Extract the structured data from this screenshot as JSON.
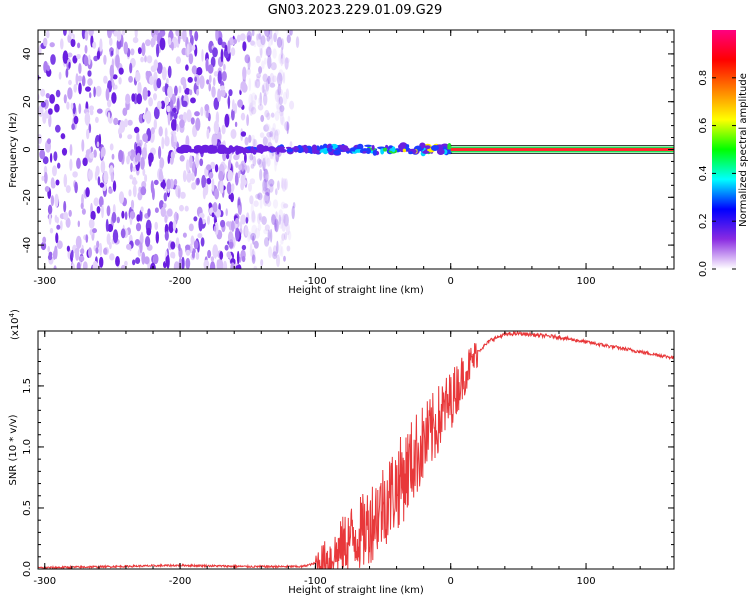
{
  "title": "GN03.2023.229.01.09.G29",
  "chart_data": [
    {
      "type": "heatmap",
      "name": "spectrogram",
      "xlabel": "Height of straight line (km)",
      "ylabel": "Frequency (Hz)",
      "xlim": [
        -305,
        165
      ],
      "ylim": [
        -50,
        50
      ],
      "x_ticks": [
        -300,
        -200,
        -100,
        0,
        100
      ],
      "y_ticks": [
        -40,
        -20,
        0,
        20,
        40
      ],
      "noise_region_x": [
        -305,
        -120
      ],
      "signal_line_x": [
        0,
        165
      ],
      "signal_line_y": 0,
      "colorbar": {
        "label": "Normalized spectral amplitude",
        "range": [
          0.0,
          1.0
        ],
        "ticks": [
          0.0,
          0.2,
          0.4,
          0.6,
          0.8
        ],
        "colors": [
          "#ffffff",
          "#8a2be2",
          "#0000ff",
          "#00ffff",
          "#00ff00",
          "#ffff00",
          "#ff8000",
          "#ff0000",
          "#ff0080"
        ]
      }
    },
    {
      "type": "line",
      "name": "snr",
      "xlabel": "Height of straight line (km)",
      "ylabel": "SNR (10 * v/v)",
      "y_multiplier": "(x10",
      "y_multiplier_exp": "4",
      "y_multiplier_close": ")",
      "xlim": [
        -305,
        165
      ],
      "ylim": [
        0,
        1.95
      ],
      "x_ticks": [
        -300,
        -200,
        -100,
        0,
        100
      ],
      "y_ticks": [
        0.0,
        0.5,
        1.0,
        1.5
      ],
      "line_color": "#e8383a",
      "series": [
        {
          "x": [
            -305,
            -250,
            -200,
            -150,
            -110,
            -95,
            -85,
            -75,
            -65,
            -55,
            -45,
            -35,
            -25,
            -15,
            -5,
            0,
            10,
            20,
            30,
            40,
            50,
            60,
            80,
            100,
            120,
            140,
            165
          ],
          "y": [
            0.01,
            0.02,
            0.03,
            0.02,
            0.02,
            0.06,
            0.12,
            0.25,
            0.3,
            0.45,
            0.6,
            0.75,
            0.95,
            1.1,
            1.3,
            1.38,
            1.6,
            1.78,
            1.88,
            1.92,
            1.93,
            1.92,
            1.9,
            1.86,
            1.82,
            1.78,
            1.73
          ]
        }
      ]
    }
  ]
}
